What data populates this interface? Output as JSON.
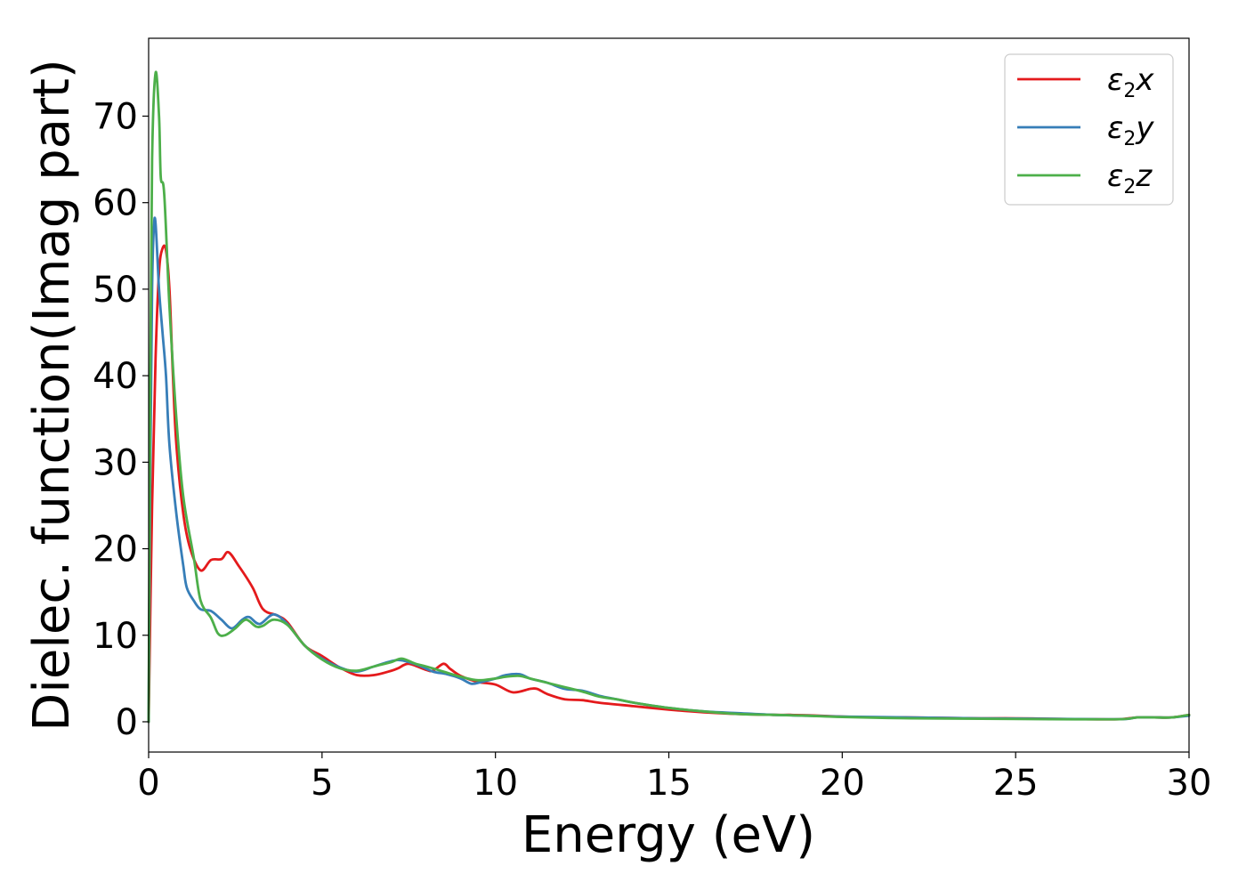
{
  "chart_data": {
    "type": "line",
    "title": "",
    "xlabel": "Energy (eV)",
    "ylabel": "Dielec. function(Imag part)",
    "xlim": [
      0,
      30
    ],
    "ylim": [
      -3.5,
      79
    ],
    "xticks": [
      0,
      5,
      10,
      15,
      20,
      25,
      30
    ],
    "yticks": [
      0,
      10,
      20,
      30,
      40,
      50,
      60,
      70
    ],
    "grid": false,
    "legend_position": "top-right",
    "series": [
      {
        "name": "ε2x",
        "legend": {
          "base": "ε",
          "sub": "2",
          "suffix": "x"
        },
        "color": "#e41a1c",
        "points": [
          [
            0,
            0
          ],
          [
            0.1,
            25
          ],
          [
            0.2,
            42
          ],
          [
            0.3,
            52
          ],
          [
            0.4,
            54.7
          ],
          [
            0.5,
            54.5
          ],
          [
            0.6,
            50
          ],
          [
            0.7,
            40
          ],
          [
            0.8,
            32
          ],
          [
            1.0,
            24
          ],
          [
            1.2,
            20
          ],
          [
            1.5,
            17.5
          ],
          [
            1.8,
            18.7
          ],
          [
            2.1,
            18.8
          ],
          [
            2.3,
            19.6
          ],
          [
            2.6,
            18
          ],
          [
            3.0,
            15.5
          ],
          [
            3.3,
            13
          ],
          [
            3.7,
            12.3
          ],
          [
            4.0,
            11.5
          ],
          [
            4.5,
            8.8
          ],
          [
            5.0,
            7.6
          ],
          [
            5.5,
            6.3
          ],
          [
            6.0,
            5.4
          ],
          [
            6.5,
            5.4
          ],
          [
            7.0,
            5.9
          ],
          [
            7.2,
            6.2
          ],
          [
            7.5,
            6.7
          ],
          [
            8.0,
            6.0
          ],
          [
            8.2,
            5.9
          ],
          [
            8.5,
            6.7
          ],
          [
            8.7,
            6.1
          ],
          [
            9.0,
            5.3
          ],
          [
            9.5,
            4.6
          ],
          [
            10.0,
            4.3
          ],
          [
            10.5,
            3.4
          ],
          [
            11.0,
            3.8
          ],
          [
            11.2,
            3.8
          ],
          [
            11.5,
            3.2
          ],
          [
            12.0,
            2.6
          ],
          [
            12.5,
            2.5
          ],
          [
            13.0,
            2.2
          ],
          [
            14.0,
            1.8
          ],
          [
            15.0,
            1.4
          ],
          [
            16.0,
            1.1
          ],
          [
            17.0,
            0.9
          ],
          [
            18.0,
            0.8
          ],
          [
            18.5,
            0.8
          ],
          [
            19.0,
            0.75
          ],
          [
            20.0,
            0.6
          ],
          [
            21.0,
            0.5
          ],
          [
            22.0,
            0.5
          ],
          [
            24.0,
            0.4
          ],
          [
            25.0,
            0.4
          ],
          [
            26.0,
            0.35
          ],
          [
            27.0,
            0.3
          ],
          [
            28.0,
            0.3
          ],
          [
            28.5,
            0.5
          ],
          [
            29.0,
            0.5
          ],
          [
            29.5,
            0.5
          ],
          [
            30.0,
            0.8
          ]
        ]
      },
      {
        "name": "ε2y",
        "legend": {
          "base": "ε",
          "sub": "2",
          "suffix": "y"
        },
        "color": "#377eb8",
        "points": [
          [
            0,
            0
          ],
          [
            0.05,
            30
          ],
          [
            0.1,
            50
          ],
          [
            0.15,
            57
          ],
          [
            0.2,
            57.6
          ],
          [
            0.3,
            50
          ],
          [
            0.4,
            45
          ],
          [
            0.5,
            40
          ],
          [
            0.6,
            32
          ],
          [
            0.8,
            24
          ],
          [
            1.0,
            18
          ],
          [
            1.1,
            15.5
          ],
          [
            1.3,
            14
          ],
          [
            1.5,
            13
          ],
          [
            1.8,
            12.8
          ],
          [
            2.1,
            11.8
          ],
          [
            2.4,
            10.8
          ],
          [
            2.7,
            11.8
          ],
          [
            2.9,
            12.1
          ],
          [
            3.2,
            11.3
          ],
          [
            3.6,
            12.4
          ],
          [
            4.0,
            11.3
          ],
          [
            4.5,
            8.8
          ],
          [
            5.0,
            7.3
          ],
          [
            5.5,
            6.3
          ],
          [
            6.0,
            5.8
          ],
          [
            6.5,
            6.4
          ],
          [
            7.0,
            7.0
          ],
          [
            7.3,
            7.1
          ],
          [
            7.8,
            6.5
          ],
          [
            8.2,
            5.8
          ],
          [
            8.6,
            5.5
          ],
          [
            9.0,
            5.0
          ],
          [
            9.3,
            4.4
          ],
          [
            9.6,
            4.6
          ],
          [
            10.0,
            5.0
          ],
          [
            10.3,
            5.4
          ],
          [
            10.7,
            5.5
          ],
          [
            11.0,
            5.0
          ],
          [
            11.5,
            4.5
          ],
          [
            12.0,
            3.8
          ],
          [
            12.5,
            3.6
          ],
          [
            13.0,
            3.0
          ],
          [
            13.5,
            2.6
          ],
          [
            14.0,
            2.2
          ],
          [
            15.0,
            1.6
          ],
          [
            16.0,
            1.2
          ],
          [
            17.0,
            1.0
          ],
          [
            18.0,
            0.8
          ],
          [
            19.0,
            0.7
          ],
          [
            20.0,
            0.6
          ],
          [
            22.0,
            0.5
          ],
          [
            24.0,
            0.4
          ],
          [
            26.0,
            0.35
          ],
          [
            28.0,
            0.3
          ],
          [
            28.5,
            0.5
          ],
          [
            29.0,
            0.5
          ],
          [
            29.5,
            0.5
          ],
          [
            30.0,
            0.7
          ]
        ]
      },
      {
        "name": "ε2z",
        "legend": {
          "base": "ε",
          "sub": "2",
          "suffix": "z"
        },
        "color": "#4daf4a",
        "points": [
          [
            0,
            0
          ],
          [
            0.05,
            40
          ],
          [
            0.1,
            65
          ],
          [
            0.2,
            75
          ],
          [
            0.3,
            70
          ],
          [
            0.35,
            63
          ],
          [
            0.45,
            61
          ],
          [
            0.6,
            48
          ],
          [
            0.8,
            35
          ],
          [
            1.0,
            26
          ],
          [
            1.3,
            19
          ],
          [
            1.5,
            14
          ],
          [
            1.8,
            12
          ],
          [
            2.0,
            10.2
          ],
          [
            2.2,
            10.0
          ],
          [
            2.5,
            10.8
          ],
          [
            2.8,
            11.8
          ],
          [
            3.1,
            11.0
          ],
          [
            3.3,
            11.1
          ],
          [
            3.6,
            11.8
          ],
          [
            4.0,
            11.2
          ],
          [
            4.5,
            8.8
          ],
          [
            5.0,
            7.2
          ],
          [
            5.5,
            6.2
          ],
          [
            6.0,
            5.9
          ],
          [
            6.5,
            6.4
          ],
          [
            7.0,
            6.9
          ],
          [
            7.3,
            7.3
          ],
          [
            7.7,
            6.7
          ],
          [
            8.0,
            6.4
          ],
          [
            8.5,
            5.8
          ],
          [
            9.0,
            5.2
          ],
          [
            9.5,
            4.8
          ],
          [
            10.0,
            5.0
          ],
          [
            10.3,
            5.2
          ],
          [
            10.7,
            5.3
          ],
          [
            11.0,
            5.0
          ],
          [
            11.5,
            4.5
          ],
          [
            12.0,
            4.0
          ],
          [
            12.5,
            3.5
          ],
          [
            13.0,
            2.9
          ],
          [
            13.5,
            2.6
          ],
          [
            14.0,
            2.2
          ],
          [
            15.0,
            1.6
          ],
          [
            16.0,
            1.2
          ],
          [
            17.0,
            0.9
          ],
          [
            18.0,
            0.8
          ],
          [
            19.0,
            0.7
          ],
          [
            20.0,
            0.55
          ],
          [
            22.0,
            0.4
          ],
          [
            24.0,
            0.35
          ],
          [
            26.0,
            0.3
          ],
          [
            28.0,
            0.3
          ],
          [
            28.5,
            0.5
          ],
          [
            29.0,
            0.5
          ],
          [
            29.5,
            0.5
          ],
          [
            30.0,
            0.8
          ]
        ]
      }
    ]
  }
}
